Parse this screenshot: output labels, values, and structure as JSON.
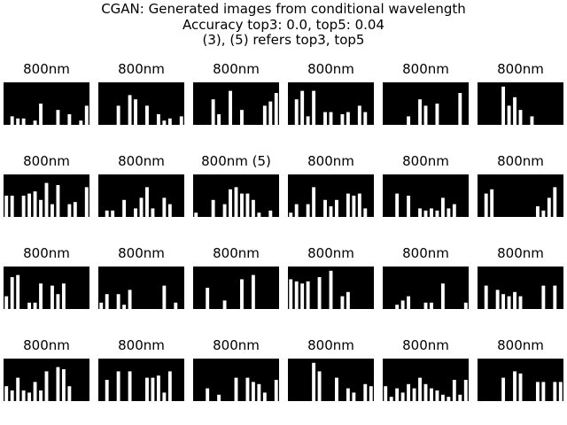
{
  "chart_data": {
    "type": "image-grid",
    "title_lines": [
      "CGAN: Generated images from conditional wavelength",
      "Accuracy top3: 0.0, top5: 0.04",
      "(3), (5) refers top3, top5"
    ],
    "rows": 4,
    "cols": 6,
    "colors": {
      "background": "#000000",
      "bar": "#ffffff"
    },
    "panels": [
      {
        "title": "800nm",
        "bars": [
          0,
          0.2,
          0.15,
          0.15,
          0,
          0.1,
          0.5,
          0,
          0,
          0.35,
          0,
          0.25,
          0,
          0.1,
          0.45
        ]
      },
      {
        "title": "800nm",
        "bars": [
          0,
          0,
          0,
          0.45,
          0,
          0.7,
          0.6,
          0,
          0.45,
          0,
          0.25,
          0.1,
          0.15,
          0,
          0.2
        ]
      },
      {
        "title": "800nm",
        "bars": [
          0,
          0,
          0,
          0.6,
          0.25,
          0,
          0.8,
          0,
          0.35,
          0,
          0,
          0,
          0.45,
          0.55,
          0.75
        ]
      },
      {
        "title": "800nm",
        "bars": [
          0,
          0.6,
          0.8,
          0.2,
          0.8,
          0,
          0.3,
          0.3,
          0,
          0.25,
          0.3,
          0,
          0.45,
          0.3,
          0
        ]
      },
      {
        "title": "800nm",
        "bars": [
          0,
          0,
          0,
          0,
          0.2,
          0,
          0.6,
          0.45,
          0,
          0.5,
          0,
          0,
          0,
          0.75,
          0
        ]
      },
      {
        "title": "800nm",
        "bars": [
          0,
          0,
          0,
          0,
          0.9,
          0.45,
          0.65,
          0.35,
          0,
          0.2,
          0,
          0,
          0,
          0,
          0
        ]
      },
      {
        "title": "800nm",
        "bars": [
          0.5,
          0.5,
          0,
          0.5,
          0.55,
          0.6,
          0.4,
          0.8,
          0.3,
          0.75,
          0,
          0.3,
          0.35,
          0,
          0.7
        ]
      },
      {
        "title": "800nm",
        "bars": [
          0,
          0.15,
          0.15,
          0,
          0.4,
          0,
          0.2,
          0.45,
          0.7,
          0.2,
          0,
          0.45,
          0.3,
          0,
          0
        ]
      },
      {
        "title": "800nm (5)",
        "bars": [
          0.1,
          0,
          0,
          0.4,
          0,
          0.3,
          0.65,
          0.7,
          0.55,
          0.55,
          0.4,
          0.1,
          0,
          0.15,
          0
        ]
      },
      {
        "title": "800nm",
        "bars": [
          0.1,
          0.3,
          0,
          0.3,
          0.7,
          0,
          0.4,
          0.25,
          0.4,
          0,
          0.55,
          0.5,
          0.55,
          0.2,
          0
        ]
      },
      {
        "title": "800nm",
        "bars": [
          0,
          0,
          0.55,
          0,
          0.5,
          0,
          0.2,
          0.15,
          0.2,
          0.15,
          0.45,
          0.2,
          0.3,
          0,
          0
        ]
      },
      {
        "title": "800nm",
        "bars": [
          0,
          0.55,
          0.65,
          0,
          0,
          0,
          0,
          0,
          0,
          0,
          0.25,
          0.15,
          0.45,
          0.7,
          0
        ]
      },
      {
        "title": "800nm",
        "bars": [
          0.3,
          0.75,
          0.8,
          0,
          0.15,
          0.15,
          0.6,
          0,
          0.55,
          0.35,
          0.6,
          0,
          0,
          0,
          0
        ]
      },
      {
        "title": "800nm",
        "bars": [
          0.15,
          0.35,
          0,
          0.35,
          0.1,
          0.45,
          0,
          0,
          0,
          0,
          0,
          0.55,
          0,
          0.15,
          0
        ]
      },
      {
        "title": "800nm",
        "bars": [
          0,
          0,
          0.5,
          0,
          0,
          0.2,
          0,
          0,
          0.7,
          0,
          0.8,
          0,
          0,
          0,
          0
        ]
      },
      {
        "title": "800nm",
        "bars": [
          0.7,
          0.65,
          0.6,
          0.65,
          0,
          0.75,
          0,
          0.9,
          0,
          0.3,
          0.4,
          0,
          0,
          0,
          0
        ]
      },
      {
        "title": "800nm",
        "bars": [
          0,
          0,
          0.1,
          0.2,
          0.3,
          0,
          0,
          0.15,
          0.15,
          0,
          0.6,
          0,
          0,
          0,
          0.15
        ]
      },
      {
        "title": "800nm",
        "bars": [
          0,
          0.55,
          0,
          0.45,
          0.35,
          0.3,
          0.4,
          0.3,
          0,
          0,
          0,
          0.55,
          0,
          0.55,
          0
        ]
      },
      {
        "title": "800nm",
        "bars": [
          0.35,
          0.25,
          0.55,
          0.25,
          0.2,
          0.45,
          0.25,
          0.7,
          0,
          0.8,
          0.75,
          0.35,
          0,
          0,
          0
        ]
      },
      {
        "title": "800nm",
        "bars": [
          0,
          0.5,
          0,
          0.7,
          0,
          0.7,
          0,
          0,
          0.55,
          0.55,
          0.6,
          0.2,
          0.7,
          0,
          0
        ]
      },
      {
        "title": "800nm",
        "bars": [
          0,
          0,
          0.3,
          0,
          0.15,
          0,
          0,
          0.55,
          0,
          0.55,
          0.45,
          0.4,
          0.2,
          0,
          0.5
        ]
      },
      {
        "title": "800nm",
        "bars": [
          0,
          0,
          0,
          0,
          0.9,
          0.7,
          0,
          0,
          0.55,
          0,
          0.3,
          0.2,
          0,
          0.4,
          0.35
        ]
      },
      {
        "title": "800nm",
        "bars": [
          0.35,
          0.1,
          0.3,
          0.2,
          0.4,
          0.3,
          0.55,
          0.4,
          0.3,
          0.25,
          0.15,
          0.1,
          0.5,
          0.15,
          0.5
        ]
      },
      {
        "title": "800nm",
        "bars": [
          0,
          0,
          0,
          0,
          0.55,
          0,
          0.7,
          0.65,
          0,
          0,
          0.45,
          0.45,
          0,
          0.45,
          0.45
        ]
      }
    ]
  }
}
